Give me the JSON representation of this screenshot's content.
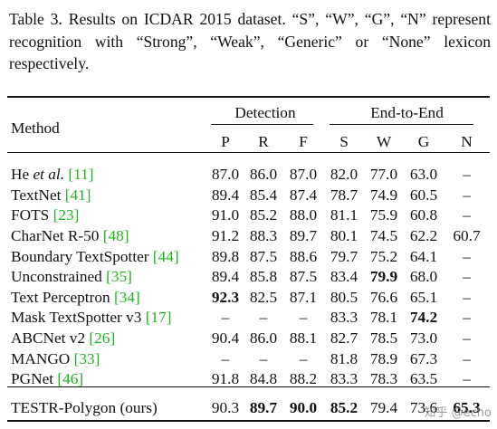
{
  "caption": "Table 3. Results on ICDAR 2015 dataset. “S”, “W”, “G”, “N” represent recognition with “Strong”, “Weak”, “Generic” or “None” lexicon respectively.",
  "headers": {
    "method": "Method",
    "detection": "Detection",
    "end_to_end": "End-to-End",
    "cols": [
      "P",
      "R",
      "F",
      "S",
      "W",
      "G",
      "N"
    ]
  },
  "rows": [
    {
      "name": "He ",
      "name_italic": "et al.",
      "ref": "[11]",
      "values": [
        "87.0",
        "86.0",
        "87.0",
        "82.0",
        "77.0",
        "63.0",
        "–"
      ],
      "bold": []
    },
    {
      "name": "TextNet ",
      "ref": "[41]",
      "values": [
        "89.4",
        "85.4",
        "87.4",
        "78.7",
        "74.9",
        "60.5",
        "–"
      ],
      "bold": []
    },
    {
      "name": "FOTS ",
      "ref": "[23]",
      "values": [
        "91.0",
        "85.2",
        "88.0",
        "81.1",
        "75.9",
        "60.8",
        "–"
      ],
      "bold": []
    },
    {
      "name": "CharNet R-50 ",
      "ref": "[48]",
      "values": [
        "91.2",
        "88.3",
        "89.7",
        "80.1",
        "74.5",
        "62.2",
        "60.7"
      ],
      "bold": []
    },
    {
      "name": "Boundary TextSpotter ",
      "ref": "[44]",
      "values": [
        "89.8",
        "87.5",
        "88.6",
        "79.7",
        "75.2",
        "64.1",
        "–"
      ],
      "bold": []
    },
    {
      "name": "Unconstrained ",
      "ref": "[35]",
      "values": [
        "89.4",
        "85.8",
        "87.5",
        "83.4",
        "79.9",
        "68.0",
        "–"
      ],
      "bold": [
        4
      ]
    },
    {
      "name": "Text Perceptron ",
      "ref": "[34]",
      "values": [
        "92.3",
        "82.5",
        "87.1",
        "80.5",
        "76.6",
        "65.1",
        "–"
      ],
      "bold": [
        0
      ]
    },
    {
      "name": "Mask TextSpotter v3 ",
      "ref": "[17]",
      "values": [
        "–",
        "–",
        "–",
        "83.3",
        "78.1",
        "74.2",
        "–"
      ],
      "bold": [
        5
      ]
    },
    {
      "name": "ABCNet v2 ",
      "ref": "[26]",
      "values": [
        "90.4",
        "86.0",
        "88.1",
        "82.7",
        "78.5",
        "73.0",
        "–"
      ],
      "bold": []
    },
    {
      "name": "MANGO ",
      "ref": "[33]",
      "values": [
        "–",
        "–",
        "–",
        "81.8",
        "78.9",
        "67.3",
        "–"
      ],
      "bold": []
    },
    {
      "name": "PGNet ",
      "ref": "[46]",
      "values": [
        "91.8",
        "84.8",
        "88.2",
        "83.3",
        "78.3",
        "63.5",
        "–"
      ],
      "bold": []
    }
  ],
  "final_row": {
    "name": "TESTR-Polygon (ours)",
    "values": [
      "90.3",
      "89.7",
      "90.0",
      "85.2",
      "79.4",
      "73.6",
      "65.3"
    ],
    "bold": [
      1,
      2,
      3,
      6
    ]
  },
  "watermark": "知乎 @echo"
}
